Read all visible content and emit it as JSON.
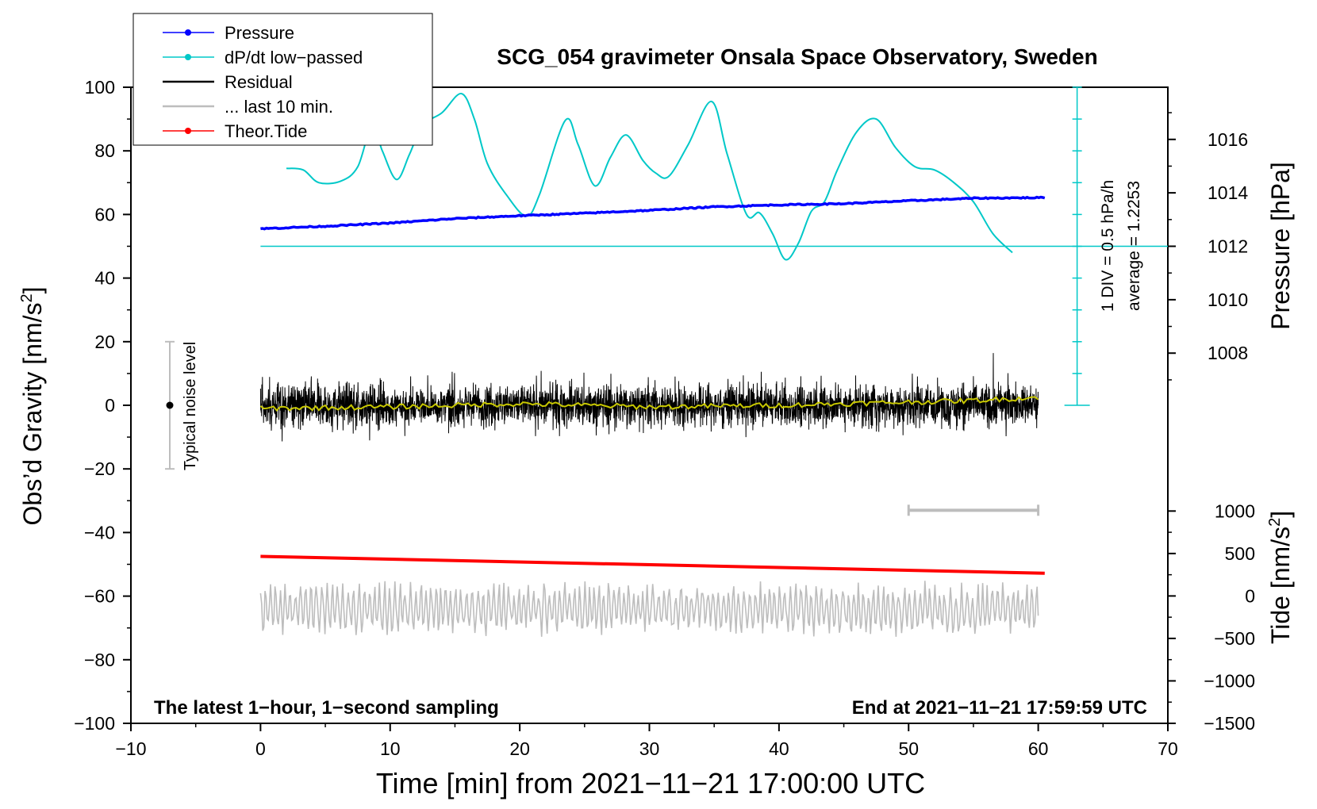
{
  "chart_data": {
    "type": "line",
    "title": "SCG_054 gravimeter Onsala Space Observatory, Sweden",
    "xlabel": "Time [min] from 2021−11−21 17:00:00 UTC",
    "ylabel_left_main": "Obs’d Gravity [nm/s",
    "ylabel_left_sup": "2",
    "ylabel_left_end": "]",
    "ylabel_right_pressure": "Pressure [hPa]",
    "ylabel_right_tide_main": "Tide [nm/s",
    "ylabel_right_tide_sup": "2",
    "ylabel_right_tide_end": "]",
    "xlim": [
      -10,
      70
    ],
    "ylim_gravity": [
      -100,
      100
    ],
    "x_ticks": [
      "−10",
      "0",
      "10",
      "20",
      "30",
      "40",
      "50",
      "60",
      "70"
    ],
    "x_tick_values": [
      -10,
      0,
      10,
      20,
      30,
      40,
      50,
      60,
      70
    ],
    "y_ticks_gravity": [
      "−100",
      "−80",
      "−60",
      "−40",
      "−20",
      "0",
      "20",
      "40",
      "60",
      "80",
      "100"
    ],
    "y_tick_values_gravity": [
      -100,
      -80,
      -60,
      -40,
      -20,
      0,
      20,
      40,
      60,
      80,
      100
    ],
    "pressure_axis": {
      "ticks": [
        "1008",
        "1010",
        "1012",
        "1014",
        "1016"
      ],
      "tick_values": [
        1008,
        1010,
        1012,
        1014,
        1016
      ],
      "anchor": {
        "hpa": 1012,
        "gravity_units": 50
      },
      "gravity_units_per_hpa": 8.4
    },
    "tide_axis": {
      "ticks": [
        "−1500",
        "−1000",
        "−500",
        "0",
        "500",
        "1000"
      ],
      "tick_values": [
        -1500,
        -1000,
        -500,
        0,
        500,
        1000
      ],
      "anchor": {
        "tide": -1500,
        "gravity_units": -100
      },
      "gravity_units_per_nms2": 0.0267
    },
    "legend": {
      "position": "top-left",
      "entries": [
        {
          "label": "Pressure",
          "color": "#0000ff",
          "marker": true
        },
        {
          "label": "dP/dt low−passed",
          "color": "#00c8c8",
          "marker": true
        },
        {
          "label": "Residual",
          "color": "#000000",
          "marker": false
        },
        {
          "label": "... last 10 min.",
          "color": "#bdbdbd",
          "marker": false
        },
        {
          "label": "Theor.Tide",
          "color": "#ff0000",
          "marker": true
        }
      ]
    },
    "annotations": {
      "bottom_left": "The latest 1−hour, 1−second sampling",
      "bottom_right": "End at 2021−11−21 17:59:59 UTC",
      "noise_label": "Typical noise level",
      "div_label": "1 DIV = 0.5 hPa/h",
      "avg_label": "average = 1.2253"
    },
    "noise_bar": {
      "x": -7,
      "center": 0,
      "range": [
        -20,
        20
      ]
    },
    "ten_min_bar": {
      "x_range": [
        50,
        60
      ],
      "y": -33
    },
    "dpdt_scale": {
      "x": 63,
      "y_range": [
        0,
        100
      ],
      "divisions": 10,
      "baseline_y": 50
    },
    "series": [
      {
        "name": "Pressure",
        "color": "#0000ff",
        "x": [
          0,
          5,
          10,
          15,
          20,
          25,
          30,
          35,
          40,
          45,
          50,
          55,
          60.5
        ],
        "y": [
          55.5,
          56.3,
          57.3,
          58.7,
          59.6,
          60.4,
          61.3,
          62.4,
          63.0,
          63.4,
          64.3,
          65.1,
          65.3
        ]
      },
      {
        "name": "dP/dt low−passed",
        "color": "#00c8c8",
        "x": [
          2,
          3.3,
          4.5,
          6.2,
          7.5,
          8.6,
          9.4,
          10.5,
          11.5,
          12.5,
          14.0,
          15.5,
          16.5,
          17.5,
          19.0,
          20.5,
          21.5,
          23.5,
          24.5,
          25.8,
          27.0,
          28.2,
          29.5,
          30.5,
          31.5,
          33.0,
          34.8,
          36.0,
          37.5,
          38.5,
          39.5,
          40.5,
          41.5,
          42.5,
          43.5,
          44.5,
          46.0,
          47.5,
          49.0,
          50.5,
          52.0,
          53.5,
          55.0,
          56.5,
          58.0
        ],
        "y": [
          74.5,
          74.0,
          70.0,
          70.5,
          75.0,
          88.0,
          80.0,
          71.0,
          79.0,
          88.0,
          92.0,
          98.0,
          90.0,
          76.0,
          66.0,
          59.5,
          66.0,
          89.5,
          82.0,
          69.0,
          78.0,
          85.0,
          77.0,
          73.0,
          72.0,
          82.0,
          95.5,
          79.0,
          60.0,
          60.5,
          54.0,
          45.8,
          51.0,
          61.0,
          64.0,
          74.0,
          86.0,
          90.0,
          81.0,
          75.0,
          74.0,
          70.0,
          64.0,
          54.0,
          48.0
        ]
      },
      {
        "name": "Residual",
        "color": "#000000",
        "x_range": [
          0,
          60
        ],
        "amplitude": 12,
        "center": 0
      },
      {
        "name": "Residual smoothed",
        "color": "#c8c800",
        "x": [
          0,
          10,
          20,
          30,
          40,
          50,
          55,
          60
        ],
        "y": [
          -1,
          -0.5,
          0.5,
          -0.5,
          0,
          1,
          1.5,
          2.5
        ]
      },
      {
        "name": "Theor.Tide",
        "color": "#ff0000",
        "x": [
          0,
          60.5
        ],
        "y": [
          -47.5,
          -52.8
        ]
      },
      {
        "name": "... last 10 min.",
        "color": "#bdbdbd",
        "x_range": [
          0,
          60
        ],
        "center": -64,
        "amplitude": 9
      }
    ]
  }
}
